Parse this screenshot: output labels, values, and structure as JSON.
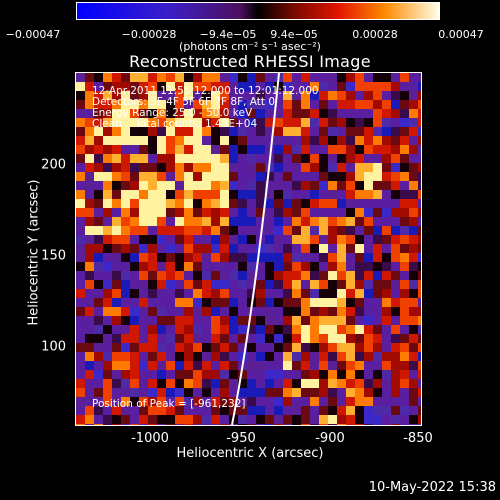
{
  "colorbar": {
    "ticks": [
      "−0.00047",
      "−0.00028",
      "−9.4e−05",
      "9.4e−05",
      "0.00028",
      "0.00047"
    ],
    "units": "(photons cm⁻² s⁻¹ asec⁻²)"
  },
  "title": "Reconstructed RHESSI Image",
  "annotations": {
    "time": "12-Apr-2011 11:55:12.000 to 12:01:12.000",
    "detectors": "Detectors: 3F 4F 5F 6F 7F 8F, Att 0",
    "energy": "Energy Range: 25.0 - 50.0 keV",
    "clean": "Clean    Total counts: 1.48E+04",
    "peak": "Position of Peak = [-961,232]"
  },
  "axes": {
    "xlabel": "Heliocentric X (arcsec)",
    "ylabel": "Heliocentric Y (arcsec)",
    "xticks": [
      "-1000",
      "-950",
      "-900",
      "-850"
    ],
    "yticks": [
      "200",
      "150",
      "100"
    ]
  },
  "timestamp": "10-May-2022 15:38",
  "colors": {
    "background": "#000000",
    "limb": "#ffffff"
  }
}
